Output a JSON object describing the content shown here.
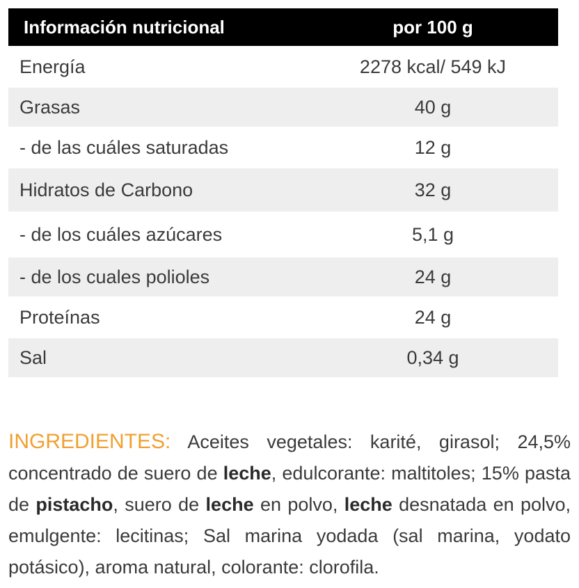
{
  "table": {
    "header": [
      "Información nutricional",
      "por 100 g"
    ],
    "rows": [
      [
        "Energía",
        "2278 kcal/ 549 kJ"
      ],
      [
        "Grasas",
        "40 g"
      ],
      [
        "- de las cuáles saturadas",
        "12 g"
      ],
      [
        "Hidratos de Carbono",
        "32 g"
      ],
      [
        "- de los cuáles azúcares",
        "5,1 g"
      ],
      [
        "- de los cuales polioles",
        "24 g"
      ],
      [
        "Proteínas",
        "24 g"
      ],
      [
        "Sal",
        "0,34 g"
      ]
    ]
  },
  "ingredients": {
    "label": "INGREDIENTES:",
    "segments": [
      {
        "text": "Aceites vegetales: karité, girasol; 24,5% concentrado de suero de ",
        "bold": false
      },
      {
        "text": "leche",
        "bold": true
      },
      {
        "text": ", edulcorante: maltitoles; 15% pasta de ",
        "bold": false
      },
      {
        "text": "pistacho",
        "bold": true
      },
      {
        "text": ", suero de ",
        "bold": false
      },
      {
        "text": "leche",
        "bold": true
      },
      {
        "text": " en polvo, ",
        "bold": false
      },
      {
        "text": "leche",
        "bold": true
      },
      {
        "text": " desnatada en polvo, emulgente: lecitinas; Sal marina yodada (sal marina, yodato potásico), aroma natural, colorante: clorofila.",
        "bold": false
      }
    ]
  }
}
